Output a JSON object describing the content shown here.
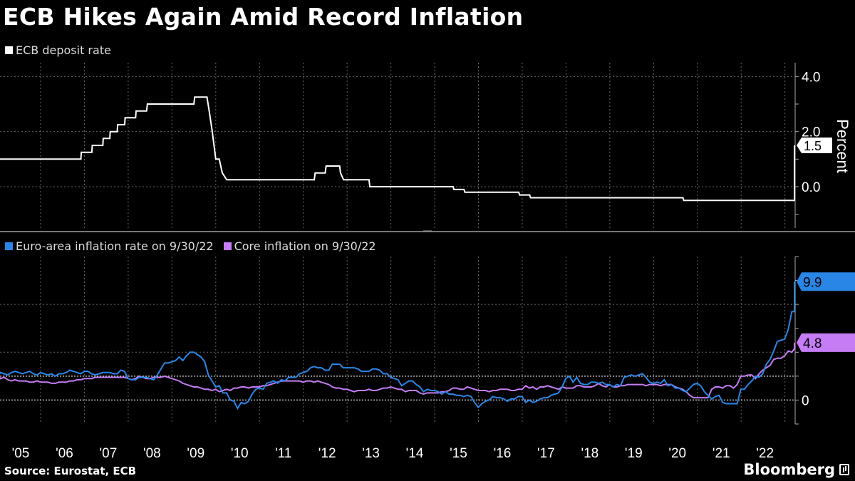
{
  "title": "ECB Hikes Again Amid Record Inflation",
  "source": "Source: Eurostat, ECB",
  "brand": "Bloomberg",
  "colors": {
    "background": "#000000",
    "deposit_rate": "#ffffff",
    "headline_inflation": "#2a86e6",
    "core_inflation": "#c57cf5",
    "grid": "#666666"
  },
  "chart_data": [
    {
      "type": "line",
      "panel": "top",
      "ylabel": "Percent",
      "ylim": [
        -1.5,
        4.5
      ],
      "yticks": [
        "4.0",
        "2.0",
        "0.0"
      ],
      "ytick_values": [
        4,
        2,
        0
      ],
      "grid": true,
      "legend": "top-left",
      "end_label": "1.5",
      "series": [
        {
          "name": "ECB deposit rate",
          "color": "#ffffff",
          "points": [
            [
              2004.0,
              1.0
            ],
            [
              2005.92,
              1.0
            ],
            [
              2005.93,
              1.25
            ],
            [
              2006.17,
              1.25
            ],
            [
              2006.18,
              1.5
            ],
            [
              2006.42,
              1.5
            ],
            [
              2006.43,
              1.75
            ],
            [
              2006.58,
              1.75
            ],
            [
              2006.59,
              2.0
            ],
            [
              2006.75,
              2.0
            ],
            [
              2006.76,
              2.25
            ],
            [
              2006.92,
              2.25
            ],
            [
              2006.93,
              2.5
            ],
            [
              2007.17,
              2.5
            ],
            [
              2007.18,
              2.75
            ],
            [
              2007.42,
              2.75
            ],
            [
              2007.44,
              3.0
            ],
            [
              2008.5,
              3.0
            ],
            [
              2008.52,
              3.25
            ],
            [
              2008.8,
              3.25
            ],
            [
              2008.85,
              2.75
            ],
            [
              2008.92,
              2.0
            ],
            [
              2009.0,
              1.0
            ],
            [
              2009.08,
              1.0
            ],
            [
              2009.15,
              0.5
            ],
            [
              2009.25,
              0.25
            ],
            [
              2011.25,
              0.25
            ],
            [
              2011.27,
              0.5
            ],
            [
              2011.5,
              0.5
            ],
            [
              2011.52,
              0.75
            ],
            [
              2011.83,
              0.75
            ],
            [
              2011.85,
              0.5
            ],
            [
              2011.92,
              0.25
            ],
            [
              2012.5,
              0.25
            ],
            [
              2012.52,
              0.0
            ],
            [
              2014.42,
              0.0
            ],
            [
              2014.44,
              -0.1
            ],
            [
              2014.67,
              -0.1
            ],
            [
              2014.69,
              -0.2
            ],
            [
              2015.92,
              -0.2
            ],
            [
              2015.94,
              -0.3
            ],
            [
              2016.17,
              -0.3
            ],
            [
              2016.19,
              -0.4
            ],
            [
              2019.67,
              -0.4
            ],
            [
              2019.69,
              -0.5
            ],
            [
              2022.5,
              -0.5
            ],
            [
              2022.55,
              0.0
            ],
            [
              2022.67,
              0.0
            ],
            [
              2022.75,
              0.75
            ],
            [
              2022.83,
              1.5
            ]
          ]
        }
      ]
    },
    {
      "type": "line",
      "panel": "bottom",
      "ylim": [
        -2,
        12
      ],
      "yticks": [
        "0"
      ],
      "ytick_values": [
        0
      ],
      "reference_lines": [
        2
      ],
      "grid": true,
      "legend": "top-left",
      "series": [
        {
          "name": "Euro-area inflation rate on 9/30/22",
          "color": "#2a86e6",
          "end_label": "9.9",
          "x_start": 2004.0,
          "x_step": 0.0833,
          "values": [
            2.2,
            2.3,
            2.2,
            2.1,
            2.3,
            2.4,
            2.3,
            2.2,
            2.3,
            2.4,
            2.2,
            2.1,
            2.3,
            2.2,
            2.1,
            2.2,
            2.0,
            2.2,
            2.2,
            2.3,
            2.5,
            2.4,
            2.3,
            2.2,
            2.4,
            2.4,
            2.2,
            2.1,
            2.2,
            2.3,
            2.3,
            2.3,
            2.2,
            2.2,
            2.5,
            2.4,
            1.8,
            1.7,
            1.7,
            1.9,
            1.9,
            1.9,
            1.8,
            1.7,
            2.1,
            2.6,
            3.1,
            3.1,
            3.2,
            3.3,
            3.6,
            3.3,
            3.7,
            4.0,
            4.0,
            3.8,
            3.6,
            3.2,
            2.1,
            1.6,
            1.1,
            1.2,
            0.6,
            0.6,
            0.0,
            -0.1,
            -0.7,
            -0.2,
            -0.3,
            -0.1,
            0.5,
            0.9,
            1.0,
            0.9,
            1.4,
            1.5,
            1.6,
            1.4,
            1.7,
            1.6,
            1.9,
            1.9,
            1.9,
            2.2,
            2.3,
            2.4,
            2.7,
            2.8,
            2.7,
            2.7,
            2.5,
            2.5,
            3.0,
            3.0,
            3.0,
            2.7,
            2.7,
            2.7,
            2.7,
            2.6,
            2.4,
            2.4,
            2.4,
            2.6,
            2.6,
            2.5,
            2.2,
            2.2,
            1.9,
            1.8,
            1.7,
            1.2,
            1.4,
            1.6,
            1.6,
            1.3,
            1.1,
            0.7,
            0.9,
            0.8,
            0.8,
            0.7,
            0.5,
            0.7,
            0.5,
            0.5,
            0.4,
            0.4,
            0.3,
            0.4,
            0.3,
            -0.2,
            -0.6,
            -0.3,
            -0.1,
            0.0,
            0.3,
            0.2,
            0.2,
            0.1,
            -0.1,
            0.1,
            0.1,
            0.3,
            0.3,
            -0.2,
            0.0,
            -0.2,
            -0.1,
            0.1,
            0.2,
            0.2,
            0.4,
            0.5,
            0.6,
            1.1,
            1.8,
            2.0,
            1.5,
            1.9,
            1.4,
            1.3,
            1.3,
            1.5,
            1.5,
            1.4,
            1.5,
            1.3,
            1.3,
            1.1,
            1.3,
            1.2,
            1.9,
            2.0,
            2.1,
            2.0,
            2.1,
            2.2,
            1.9,
            1.5,
            1.4,
            1.5,
            1.4,
            1.7,
            1.2,
            1.3,
            1.0,
            1.0,
            0.8,
            0.7,
            1.0,
            1.3,
            1.4,
            1.2,
            0.7,
            0.4,
            0.1,
            0.3,
            0.4,
            -0.2,
            -0.3,
            -0.3,
            -0.3,
            -0.3,
            0.9,
            0.9,
            1.3,
            1.6,
            2.0,
            1.9,
            2.2,
            3.0,
            3.4,
            4.1,
            4.9,
            5.0,
            5.1,
            5.9,
            7.4,
            7.4,
            8.1,
            8.6,
            8.9,
            9.1,
            9.9
          ]
        },
        {
          "name": "Core inflation on 9/30/22",
          "color": "#c57cf5",
          "end_label": "4.8",
          "x_start": 2004.0,
          "x_step": 0.0833,
          "values": [
            1.9,
            1.8,
            1.9,
            1.7,
            1.6,
            1.7,
            1.6,
            1.6,
            1.6,
            1.5,
            1.5,
            1.6,
            1.5,
            1.5,
            1.5,
            1.4,
            1.4,
            1.5,
            1.5,
            1.5,
            1.6,
            1.6,
            1.7,
            1.7,
            1.8,
            1.8,
            1.8,
            1.9,
            1.9,
            1.9,
            1.9,
            1.9,
            1.9,
            1.9,
            1.9,
            1.9,
            1.8,
            1.7,
            1.8,
            2.0,
            1.9,
            1.8,
            1.8,
            1.9,
            1.9,
            1.9,
            2.0,
            1.9,
            1.8,
            1.7,
            1.6,
            1.4,
            1.3,
            1.2,
            1.1,
            1.1,
            1.0,
            0.9,
            0.9,
            0.8,
            0.9,
            0.7,
            0.8,
            0.9,
            0.8,
            1.0,
            1.0,
            1.1,
            1.1,
            1.0,
            1.1,
            1.1,
            1.1,
            1.2,
            1.2,
            1.3,
            1.4,
            1.5,
            1.6,
            1.6,
            1.6,
            1.6,
            1.6,
            1.6,
            1.5,
            1.6,
            1.6,
            1.5,
            1.6,
            1.5,
            1.4,
            1.3,
            1.1,
            1.0,
            1.0,
            0.9,
            0.9,
            0.8,
            0.7,
            0.8,
            0.8,
            0.8,
            0.9,
            0.8,
            0.8,
            0.9,
            1.0,
            1.0,
            1.1,
            1.0,
            0.9,
            0.9,
            0.7,
            0.8,
            0.8,
            0.8,
            0.6,
            0.5,
            0.6,
            0.6,
            0.6,
            0.6,
            0.7,
            0.7,
            0.8,
            1.0,
            1.0,
            0.9,
            0.9,
            1.1,
            1.0,
            0.9,
            0.8,
            0.8,
            0.8,
            0.7,
            0.8,
            0.8,
            0.9,
            0.9,
            0.9,
            0.8,
            0.8,
            0.9,
            0.9,
            1.2,
            1.0,
            1.1,
            0.9,
            1.1,
            1.1,
            1.2,
            1.1,
            1.0,
            0.9,
            1.1,
            1.0,
            1.0,
            1.0,
            1.2,
            1.2,
            1.1,
            1.1,
            1.1,
            1.2,
            1.4,
            1.2,
            1.1,
            1.3,
            1.1,
            1.1,
            1.2,
            1.2,
            1.3,
            1.3,
            1.3,
            1.3,
            1.3,
            1.2,
            1.3,
            1.3,
            1.3,
            1.2,
            1.3,
            1.3,
            1.3,
            1.1,
            1.0,
            0.9,
            0.7,
            0.4,
            0.2,
            0.2,
            0.2,
            0.2,
            0.2,
            0.9,
            1.1,
            1.1,
            1.0,
            1.2,
            1.2,
            1.0,
            1.3,
            2.0,
            2.0,
            2.1,
            2.1,
            1.8,
            2.2,
            2.5,
            2.7,
            2.9,
            3.4,
            3.5,
            3.5,
            3.7,
            4.1,
            4.0,
            4.3,
            4.8
          ]
        }
      ]
    }
  ],
  "x_axis": {
    "ticks": [
      "'05",
      "'06",
      "'07",
      "'08",
      "'09",
      "'10",
      "'11",
      "'12",
      "'13",
      "'14",
      "'15",
      "'16",
      "'17",
      "'18",
      "'19",
      "'20",
      "'21",
      "'22"
    ]
  }
}
